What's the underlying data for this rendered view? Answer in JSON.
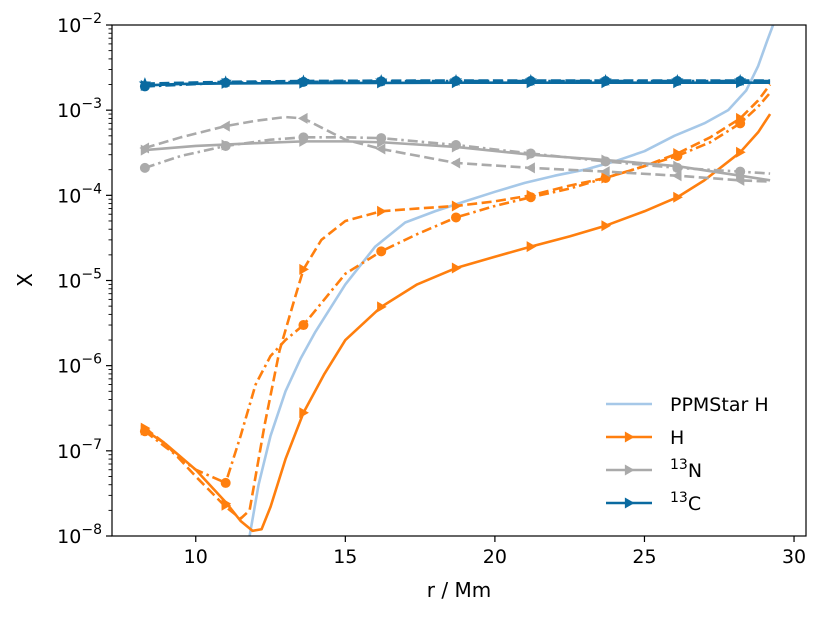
{
  "chart_data": {
    "type": "line",
    "title": "",
    "xlabel": "r / Mm",
    "ylabel": "X",
    "xlim": [
      7.2,
      30.4
    ],
    "ylim": [
      1e-08,
      0.01
    ],
    "yscale": "log",
    "grid": false,
    "legend_position": "lower-right",
    "x_ticks": [
      {
        "value": 10,
        "label": "10"
      },
      {
        "value": 15,
        "label": "15"
      },
      {
        "value": 20,
        "label": "20"
      },
      {
        "value": 25,
        "label": "25"
      },
      {
        "value": 30,
        "label": "30"
      }
    ],
    "y_ticks": [
      {
        "exp": -8,
        "base": "10",
        "sup": "−8"
      },
      {
        "exp": -7,
        "base": "10",
        "sup": "−7"
      },
      {
        "exp": -6,
        "base": "10",
        "sup": "−6"
      },
      {
        "exp": -5,
        "base": "10",
        "sup": "−5"
      },
      {
        "exp": -4,
        "base": "10",
        "sup": "−4"
      },
      {
        "exp": -3,
        "base": "10",
        "sup": "−3"
      },
      {
        "exp": -2,
        "base": "10",
        "sup": "−2"
      }
    ],
    "colors": {
      "ppmstar_h": "#a6c8e8",
      "h": "#ff7f0e",
      "n13": "#aaaaaa",
      "c13": "#0a6aa0"
    },
    "legend": [
      {
        "label": "PPMStar H",
        "color": "#a6c8e8",
        "marker": "none",
        "sup": "",
        "text": "PPMStar H"
      },
      {
        "label": "H",
        "color": "#ff7f0e",
        "marker": "triangle-right",
        "sup": "",
        "text": "H"
      },
      {
        "label": "13N",
        "color": "#aaaaaa",
        "marker": "triangle-right",
        "sup": "13",
        "text": "N"
      },
      {
        "label": "13C",
        "color": "#0a6aa0",
        "marker": "triangle-right",
        "sup": "13",
        "text": "C"
      }
    ],
    "series": [
      {
        "name": "PPMStar H",
        "color": "#a6c8e8",
        "dash": "solid",
        "marker": "none",
        "x": [
          11.8,
          12.1,
          12.5,
          13.0,
          13.5,
          14.0,
          15.0,
          16.0,
          17.0,
          18.0,
          19.0,
          20.0,
          21.0,
          22.0,
          23.0,
          24.0,
          25.0,
          26.0,
          27.0,
          27.8,
          28.4,
          28.8,
          29.1,
          29.3
        ],
        "y": [
          1e-08,
          4e-08,
          1.5e-07,
          5e-07,
          1.2e-06,
          2.5e-06,
          9e-06,
          2.5e-05,
          4.8e-05,
          6.5e-05,
          8.5e-05,
          0.00011,
          0.00014,
          0.00017,
          0.0002,
          0.00025,
          0.00033,
          0.0005,
          0.0007,
          0.001,
          0.0017,
          0.0033,
          0.0065,
          0.01
        ]
      },
      {
        "name": "H (solid)",
        "color": "#ff7f0e",
        "dash": "solid",
        "marker": "triangle-right",
        "x": [
          8.3,
          9.0,
          10.0,
          11.0,
          11.5,
          11.9,
          12.2,
          12.5,
          13.0,
          13.6,
          14.3,
          15.0,
          16.2,
          17.4,
          18.7,
          20.0,
          21.2,
          22.5,
          23.7,
          25.0,
          26.1,
          27.0,
          28.2,
          28.8,
          29.2
        ],
        "y": [
          1.75e-07,
          1.2e-07,
          6e-08,
          2.5e-08,
          1.5e-08,
          1.15e-08,
          1.2e-08,
          2.2e-08,
          8e-08,
          2.8e-07,
          8e-07,
          2e-06,
          4.9e-06,
          9e-06,
          1.4e-05,
          1.9e-05,
          2.5e-05,
          3.3e-05,
          4.4e-05,
          6.5e-05,
          9.5e-05,
          0.00015,
          0.00032,
          0.00055,
          0.0009
        ],
        "marker_x": [
          8.3,
          11.0,
          13.6,
          16.2,
          18.7,
          21.2,
          23.7,
          26.1,
          28.2
        ],
        "marker_y": [
          1.75e-07,
          2.4e-08,
          2.8e-07,
          4.9e-06,
          1.4e-05,
          2.5e-05,
          4.4e-05,
          9.5e-05,
          0.00032
        ]
      },
      {
        "name": "H (dashed)",
        "color": "#ff7f0e",
        "dash": "dashed",
        "marker": "triangle-right",
        "x": [
          8.3,
          9.0,
          10.0,
          11.0,
          11.5,
          11.8,
          12.3,
          12.8,
          13.3,
          13.6,
          14.2,
          15.0,
          16.2,
          17.4,
          18.7,
          20.0,
          21.2,
          22.5,
          23.7,
          25.0,
          26.1,
          27.2,
          28.2,
          28.8,
          29.2
        ],
        "y": [
          1.85e-07,
          1.2e-07,
          5e-08,
          2.2e-08,
          1.6e-08,
          2e-08,
          2e-07,
          1.5e-06,
          6e-06,
          1.35e-05,
          3e-05,
          5e-05,
          6.5e-05,
          7e-05,
          7.5e-05,
          8.5e-05,
          0.0001,
          0.00013,
          0.00016,
          0.00022,
          0.00031,
          0.00048,
          0.0008,
          0.0013,
          0.002
        ],
        "marker_x": [
          8.3,
          11.0,
          13.6,
          16.2,
          18.7,
          21.2,
          23.7,
          26.1,
          28.2
        ],
        "marker_y": [
          1.85e-07,
          2.3e-08,
          1.35e-05,
          6.5e-05,
          7.5e-05,
          0.0001,
          0.00016,
          0.00031,
          0.0008
        ]
      },
      {
        "name": "H (dash-dot)",
        "color": "#ff7f0e",
        "dash": "dashdot",
        "marker": "circle",
        "x": [
          8.3,
          9.0,
          10.0,
          11.0,
          11.5,
          12.0,
          12.5,
          13.0,
          13.6,
          14.3,
          15.0,
          16.2,
          17.4,
          18.7,
          20.0,
          21.2,
          22.5,
          23.7,
          25.0,
          26.1,
          27.2,
          28.2,
          28.8,
          29.2
        ],
        "y": [
          1.7e-07,
          1.1e-07,
          6e-08,
          4.2e-08,
          1.5e-07,
          6e-07,
          1.3e-06,
          2e-06,
          3e-06,
          6e-06,
          1.2e-05,
          2.2e-05,
          3.5e-05,
          5.5e-05,
          7.5e-05,
          9.5e-05,
          0.00012,
          0.00016,
          0.00022,
          0.00029,
          0.00042,
          0.0007,
          0.0011,
          0.0016
        ],
        "marker_x": [
          8.3,
          11.0,
          13.6,
          16.2,
          18.7,
          21.2,
          23.7,
          26.1,
          28.2
        ],
        "marker_y": [
          1.7e-07,
          4.2e-08,
          3e-06,
          2.2e-05,
          5.5e-05,
          9.5e-05,
          0.00016,
          0.00029,
          0.0007
        ]
      },
      {
        "name": "13N (solid)",
        "color": "#aaaaaa",
        "dash": "solid",
        "marker": "triangle-right",
        "x": [
          8.3,
          10.0,
          12.0,
          13.6,
          15.0,
          16.2,
          18.7,
          21.2,
          23.7,
          26.1,
          28.2,
          29.2
        ],
        "y": [
          0.00034,
          0.00038,
          0.00041,
          0.00043,
          0.00043,
          0.00042,
          0.00037,
          0.0003,
          0.00026,
          0.00022,
          0.00017,
          0.00015
        ],
        "marker_x": [
          8.3,
          11.0,
          13.6,
          16.2,
          18.7,
          21.2,
          23.7,
          26.1,
          28.2
        ],
        "marker_y": [
          0.00034,
          0.00039,
          0.00043,
          0.00042,
          0.00037,
          0.0003,
          0.00026,
          0.00022,
          0.00017
        ]
      },
      {
        "name": "13N (dashed)",
        "color": "#aaaaaa",
        "dash": "dashed",
        "marker": "triangle-left",
        "x": [
          8.3,
          9.5,
          11.0,
          12.0,
          13.0,
          13.6,
          14.3,
          15.0,
          16.2,
          18.7,
          21.2,
          23.7,
          26.1,
          28.2,
          29.2
        ],
        "y": [
          0.00036,
          0.00048,
          0.00065,
          0.00075,
          0.00083,
          0.0008,
          0.0006,
          0.00045,
          0.00035,
          0.00024,
          0.00021,
          0.00019,
          0.00017,
          0.00015,
          0.000145
        ],
        "marker_x": [
          8.3,
          11.0,
          13.6,
          16.2,
          18.7,
          21.2,
          23.7,
          26.1,
          28.2
        ],
        "marker_y": [
          0.00036,
          0.00065,
          0.0008,
          0.00035,
          0.00024,
          0.00021,
          0.00019,
          0.00017,
          0.00015
        ]
      },
      {
        "name": "13N (dash-dot)",
        "color": "#aaaaaa",
        "dash": "dashdot",
        "marker": "circle",
        "x": [
          8.3,
          9.5,
          11.0,
          12.5,
          13.6,
          15.0,
          16.2,
          18.7,
          21.2,
          23.7,
          26.1,
          28.2,
          29.2
        ],
        "y": [
          0.00021,
          0.00029,
          0.00038,
          0.00045,
          0.00048,
          0.00048,
          0.00047,
          0.00039,
          0.00031,
          0.00025,
          0.00021,
          0.00019,
          0.00018
        ],
        "marker_x": [
          8.3,
          11.0,
          13.6,
          16.2,
          18.7,
          21.2,
          23.7,
          26.1,
          28.2
        ],
        "marker_y": [
          0.00021,
          0.00038,
          0.00048,
          0.00047,
          0.00039,
          0.00031,
          0.00025,
          0.00021,
          0.00019
        ]
      },
      {
        "name": "13C (solid)",
        "color": "#0a6aa0",
        "dash": "solid",
        "marker": "triangle-right",
        "x": [
          8.3,
          9.5,
          11.0,
          13.6,
          16.2,
          18.7,
          21.2,
          23.7,
          26.1,
          28.2,
          29.2
        ],
        "y": [
          0.00195,
          0.00203,
          0.00206,
          0.00208,
          0.00209,
          0.0021,
          0.0021,
          0.0021,
          0.0021,
          0.0021,
          0.0021
        ],
        "marker_x": [
          8.3,
          11.0,
          13.6,
          16.2,
          18.7,
          21.2,
          23.7,
          26.1,
          28.2
        ],
        "marker_y": [
          0.00195,
          0.00206,
          0.00208,
          0.00209,
          0.0021,
          0.0021,
          0.0021,
          0.0021,
          0.0021
        ]
      },
      {
        "name": "13C (dashed)",
        "color": "#0a6aa0",
        "dash": "dashed",
        "marker": "star",
        "x": [
          8.3,
          11.0,
          13.6,
          16.2,
          18.7,
          21.2,
          23.7,
          26.1,
          28.2,
          29.2
        ],
        "y": [
          0.00205,
          0.00215,
          0.0022,
          0.00222,
          0.00223,
          0.00223,
          0.00223,
          0.00223,
          0.00223,
          0.00223
        ],
        "marker_x": [
          8.3,
          11.0,
          13.6,
          16.2,
          18.7,
          21.2,
          23.7,
          26.1,
          28.2
        ],
        "marker_y": [
          0.00205,
          0.00215,
          0.0022,
          0.00222,
          0.00223,
          0.00223,
          0.00223,
          0.00223,
          0.00223
        ]
      },
      {
        "name": "13C (dash-dot)",
        "color": "#0a6aa0",
        "dash": "dashdot",
        "marker": "circle",
        "x": [
          8.3,
          11.0,
          13.6,
          16.2,
          18.7,
          21.2,
          23.7,
          26.1,
          28.2,
          29.2
        ],
        "y": [
          0.0019,
          0.0021,
          0.00215,
          0.00218,
          0.0022,
          0.0022,
          0.0022,
          0.0022,
          0.0022,
          0.0022
        ],
        "marker_x": [
          8.3,
          11.0,
          13.6,
          16.2,
          18.7,
          21.2,
          23.7,
          26.1,
          28.2
        ],
        "marker_y": [
          0.0019,
          0.0021,
          0.00215,
          0.00218,
          0.0022,
          0.0022,
          0.0022,
          0.0022,
          0.0022
        ]
      }
    ]
  }
}
